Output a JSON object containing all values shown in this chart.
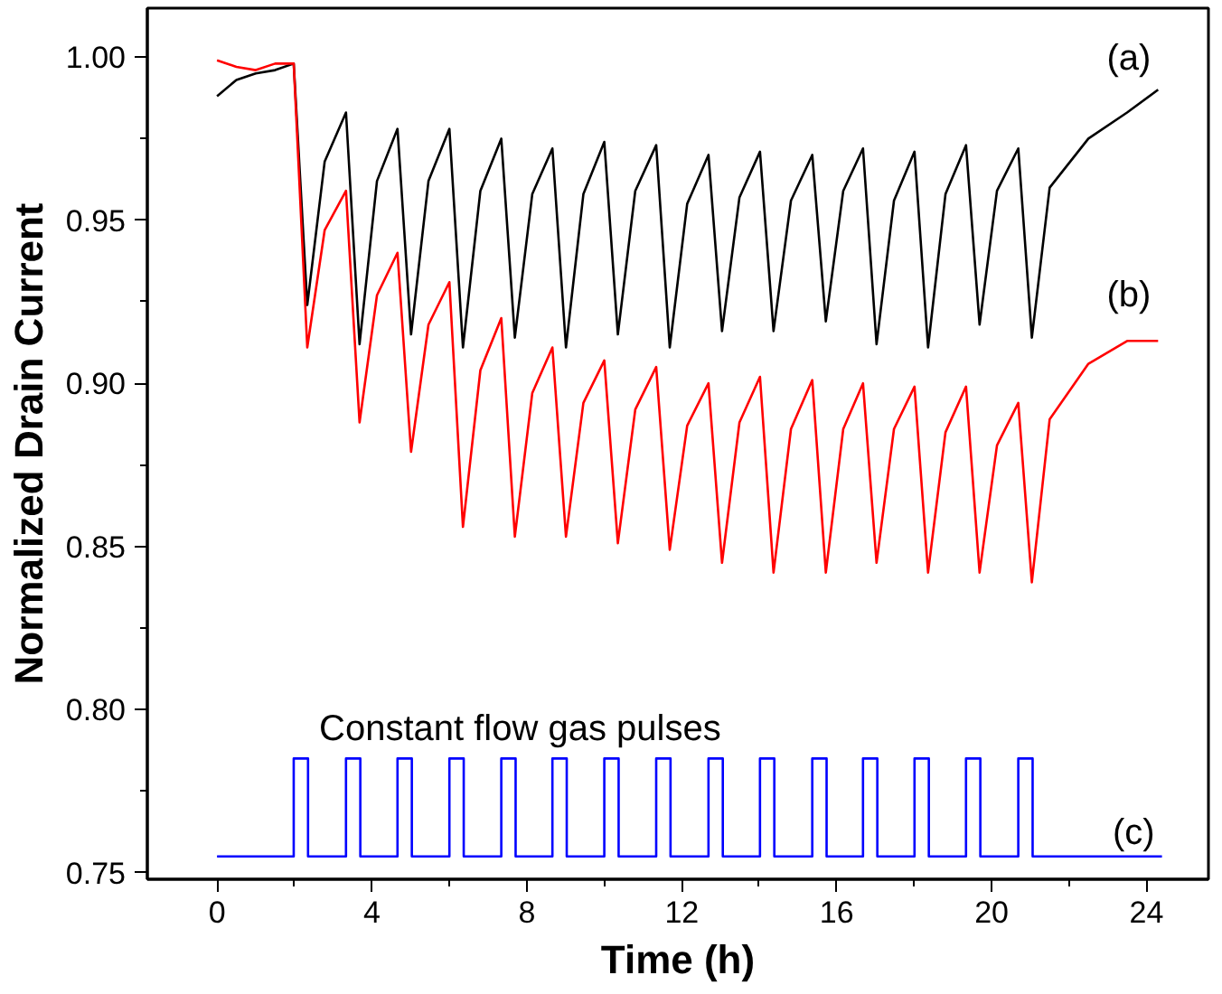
{
  "chart_data": {
    "type": "line",
    "xlabel": "Time (h)",
    "ylabel": "Normalized Drain Current",
    "xlim": [
      -1.8,
      25.6
    ],
    "ylim": [
      0.748,
      1.015
    ],
    "xticks": [
      0,
      4,
      8,
      12,
      16,
      20,
      24
    ],
    "yticks": [
      {
        "value": 0.75,
        "label": "0.75"
      },
      {
        "value": 0.8,
        "label": "0.80"
      },
      {
        "value": 0.85,
        "label": "0.85"
      },
      {
        "value": 0.9,
        "label": "0.90"
      },
      {
        "value": 0.95,
        "label": "0.95"
      },
      {
        "value": 1.0,
        "label": "1.00"
      }
    ],
    "grid": false,
    "legend": false,
    "marker": "none",
    "line_style": "solid",
    "x": [
      0,
      0.5,
      1,
      1.5,
      1.98,
      2.33,
      2.78,
      3.33,
      3.68,
      4.13,
      4.66,
      5.01,
      5.46,
      6.0,
      6.35,
      6.8,
      7.34,
      7.69,
      8.14,
      8.66,
      9.01,
      9.46,
      10.0,
      10.35,
      10.8,
      11.34,
      11.69,
      12.14,
      12.69,
      13.04,
      13.49,
      14.02,
      14.37,
      14.82,
      15.37,
      15.72,
      16.17,
      16.68,
      17.03,
      17.48,
      18.01,
      18.36,
      18.81,
      19.34,
      19.69,
      20.14,
      20.69,
      21.04,
      21.5,
      22.5,
      23.5,
      24.3
    ],
    "series": [
      {
        "name": "(a)",
        "color": "#000000",
        "values": [
          0.988,
          0.993,
          0.995,
          0.996,
          0.998,
          0.924,
          0.968,
          0.983,
          0.912,
          0.962,
          0.978,
          0.915,
          0.962,
          0.978,
          0.911,
          0.959,
          0.975,
          0.914,
          0.958,
          0.972,
          0.911,
          0.958,
          0.974,
          0.915,
          0.959,
          0.973,
          0.911,
          0.955,
          0.97,
          0.916,
          0.957,
          0.971,
          0.916,
          0.956,
          0.97,
          0.919,
          0.959,
          0.972,
          0.912,
          0.956,
          0.971,
          0.911,
          0.958,
          0.973,
          0.918,
          0.959,
          0.972,
          0.914,
          0.96,
          0.975,
          0.983,
          0.99
        ]
      },
      {
        "name": "(b)",
        "color": "#ff0000",
        "values": [
          0.999,
          0.997,
          0.996,
          0.998,
          0.998,
          0.911,
          0.947,
          0.959,
          0.888,
          0.927,
          0.94,
          0.879,
          0.918,
          0.931,
          0.856,
          0.904,
          0.92,
          0.853,
          0.897,
          0.911,
          0.853,
          0.894,
          0.907,
          0.851,
          0.892,
          0.905,
          0.849,
          0.887,
          0.9,
          0.845,
          0.888,
          0.902,
          0.842,
          0.886,
          0.901,
          0.842,
          0.886,
          0.9,
          0.845,
          0.886,
          0.899,
          0.842,
          0.885,
          0.899,
          0.842,
          0.881,
          0.894,
          0.839,
          0.889,
          0.906,
          0.913,
          0.913
        ]
      },
      {
        "name": "(c)",
        "color": "#0000ff",
        "x": [
          0,
          1.98,
          1.98,
          2.35,
          2.35,
          3.33,
          3.33,
          3.7,
          3.7,
          4.66,
          4.66,
          5.03,
          5.03,
          6.0,
          6.0,
          6.37,
          6.37,
          7.34,
          7.34,
          7.71,
          7.71,
          8.66,
          8.66,
          9.03,
          9.03,
          10.0,
          10.0,
          10.37,
          10.37,
          11.34,
          11.34,
          11.71,
          11.71,
          12.69,
          12.69,
          13.06,
          13.06,
          14.02,
          14.02,
          14.39,
          14.39,
          15.37,
          15.37,
          15.74,
          15.74,
          16.68,
          16.68,
          17.05,
          17.05,
          18.01,
          18.01,
          18.38,
          18.38,
          19.34,
          19.34,
          19.71,
          19.71,
          20.69,
          20.69,
          21.06,
          21.06,
          24.4
        ],
        "values": [
          0.755,
          0.755,
          0.785,
          0.785,
          0.755,
          0.755,
          0.785,
          0.785,
          0.755,
          0.755,
          0.785,
          0.785,
          0.755,
          0.755,
          0.785,
          0.785,
          0.755,
          0.755,
          0.785,
          0.785,
          0.755,
          0.755,
          0.785,
          0.785,
          0.755,
          0.755,
          0.785,
          0.785,
          0.755,
          0.755,
          0.785,
          0.785,
          0.755,
          0.755,
          0.785,
          0.785,
          0.755,
          0.755,
          0.785,
          0.785,
          0.755,
          0.755,
          0.785,
          0.785,
          0.755,
          0.755,
          0.785,
          0.785,
          0.755,
          0.755,
          0.785,
          0.785,
          0.755,
          0.755,
          0.785,
          0.785,
          0.755,
          0.755,
          0.785,
          0.785,
          0.755,
          0.755
        ]
      }
    ],
    "annotations": [
      "Constant flow gas pulses"
    ]
  }
}
